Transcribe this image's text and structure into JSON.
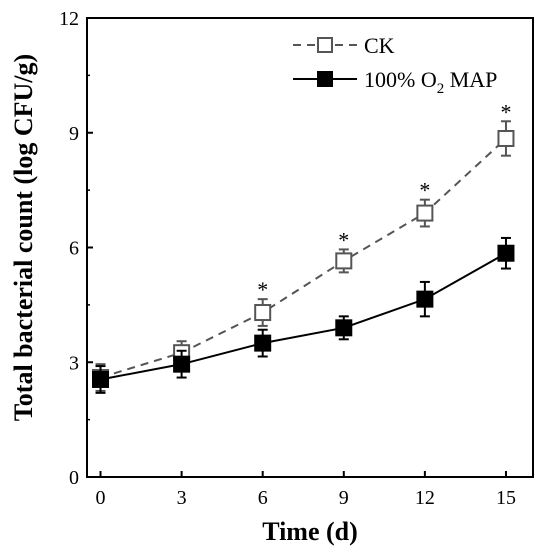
{
  "chart_data": {
    "type": "line",
    "xlabel": "Time (d)",
    "ylabel": "Total bacterial count (log CFU/g)",
    "x": [
      0,
      3,
      6,
      9,
      12,
      15
    ],
    "x_ticks": [
      "0",
      "3",
      "6",
      "9",
      "12",
      "15"
    ],
    "xlim": [
      -0.5,
      16
    ],
    "ylim": [
      0,
      12
    ],
    "y_ticks": [
      "0",
      "3",
      "6",
      "9",
      "12"
    ],
    "grid": false,
    "legend_position": "top-right",
    "series": [
      {
        "name": "CK",
        "values": [
          2.6,
          3.25,
          4.3,
          5.65,
          6.9,
          8.85
        ],
        "errors": [
          0.35,
          0.3,
          0.35,
          0.3,
          0.35,
          0.45
        ],
        "style": "dashed",
        "marker": "open-square",
        "color": "#555555"
      },
      {
        "name_parts": [
          "100% O",
          "2",
          " MAP"
        ],
        "values": [
          2.55,
          2.95,
          3.5,
          3.9,
          4.65,
          5.85
        ],
        "errors": [
          0.35,
          0.35,
          0.35,
          0.3,
          0.45,
          0.4
        ],
        "style": "solid",
        "marker": "filled-square",
        "color": "#000000"
      }
    ],
    "annotations": {
      "marker": "*",
      "x": [
        6,
        9,
        12,
        15
      ]
    }
  }
}
